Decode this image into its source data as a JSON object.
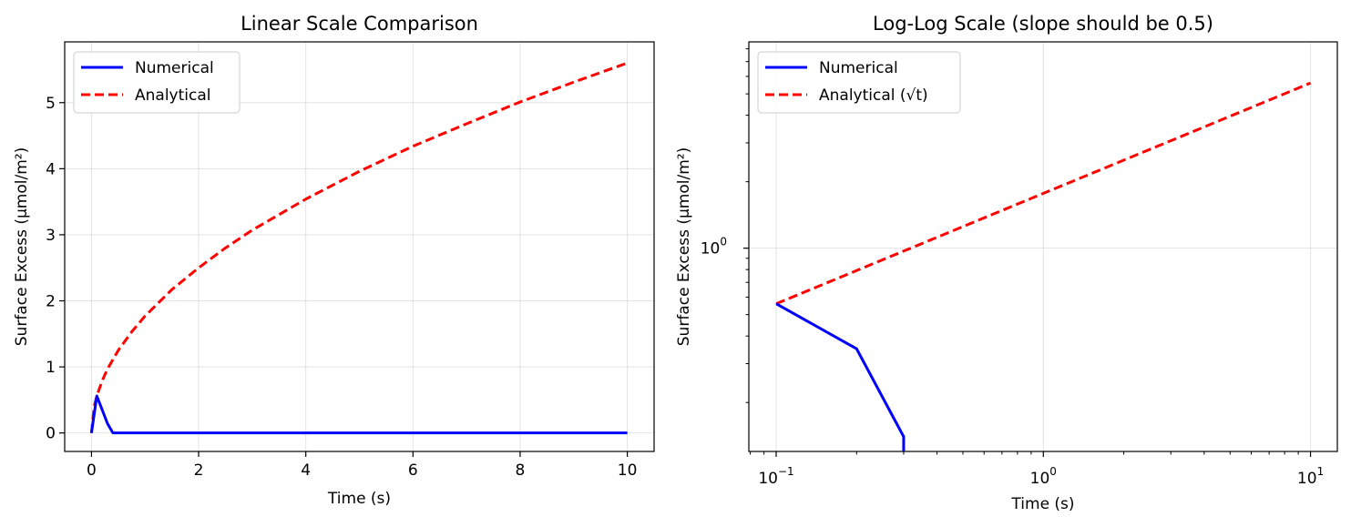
{
  "chart_data": [
    {
      "type": "line",
      "title": "Linear Scale Comparison",
      "xlabel": "Time (s)",
      "ylabel": "Surface Excess (μmol/m²)",
      "xlim": [
        -0.5,
        10.5
      ],
      "ylim": [
        -0.28,
        5.92
      ],
      "xscale": "linear",
      "yscale": "linear",
      "grid": true,
      "legend_position": "top-left",
      "xticks": [
        0,
        2,
        4,
        6,
        8,
        10
      ],
      "xtick_labels": [
        "0",
        "2",
        "4",
        "6",
        "8",
        "10"
      ],
      "yticks": [
        0,
        1,
        2,
        3,
        4,
        5
      ],
      "ytick_labels": [
        "0",
        "1",
        "2",
        "3",
        "4",
        "5"
      ],
      "series": [
        {
          "name": "Numerical",
          "color": "#0000ff",
          "style": "solid",
          "x": [
            0,
            0.1,
            0.2,
            0.3,
            0.4,
            0.5,
            1,
            2,
            3,
            4,
            5,
            6,
            7,
            8,
            9,
            10
          ],
          "y": [
            0,
            0.56,
            0.35,
            0.14,
            0,
            0,
            0,
            0,
            0,
            0,
            0,
            0,
            0,
            0,
            0,
            0
          ]
        },
        {
          "name": "Analytical",
          "color": "#ff0000",
          "style": "dashed",
          "x": [
            0,
            0.05,
            0.1,
            0.2,
            0.3,
            0.5,
            0.75,
            1,
            1.5,
            2,
            2.5,
            3,
            4,
            5,
            6,
            7,
            8,
            9,
            10
          ],
          "y": [
            0,
            0.4,
            0.56,
            0.79,
            0.97,
            1.25,
            1.53,
            1.77,
            2.17,
            2.5,
            2.8,
            3.07,
            3.54,
            3.96,
            4.34,
            4.68,
            5.01,
            5.31,
            5.6
          ]
        }
      ]
    },
    {
      "type": "line",
      "title": "Log-Log Scale (slope should be 0.5)",
      "xlabel": "Time (s)",
      "ylabel": "Surface Excess (μmol/m²)",
      "xlim": [
        0.079,
        12.6
      ],
      "ylim": [
        0.12,
        8.6
      ],
      "xscale": "log",
      "yscale": "log",
      "grid": true,
      "legend_position": "top-left",
      "xticks": [
        0.1,
        1,
        10
      ],
      "xtick_labels": [
        [
          "10",
          "−1"
        ],
        [
          "10",
          "0"
        ],
        [
          "10",
          "1"
        ]
      ],
      "yticks": [
        1
      ],
      "ytick_labels": [
        [
          "10",
          "0"
        ]
      ],
      "series": [
        {
          "name": "Numerical",
          "color": "#0000ff",
          "style": "solid",
          "x": [
            0.1,
            0.2,
            0.3,
            0.3
          ],
          "y": [
            0.56,
            0.35,
            0.14,
            0.12
          ]
        },
        {
          "name": "Analytical (√t)",
          "color": "#ff0000",
          "style": "dashed",
          "x": [
            0.1,
            10
          ],
          "y": [
            0.56,
            5.6
          ]
        }
      ]
    }
  ]
}
